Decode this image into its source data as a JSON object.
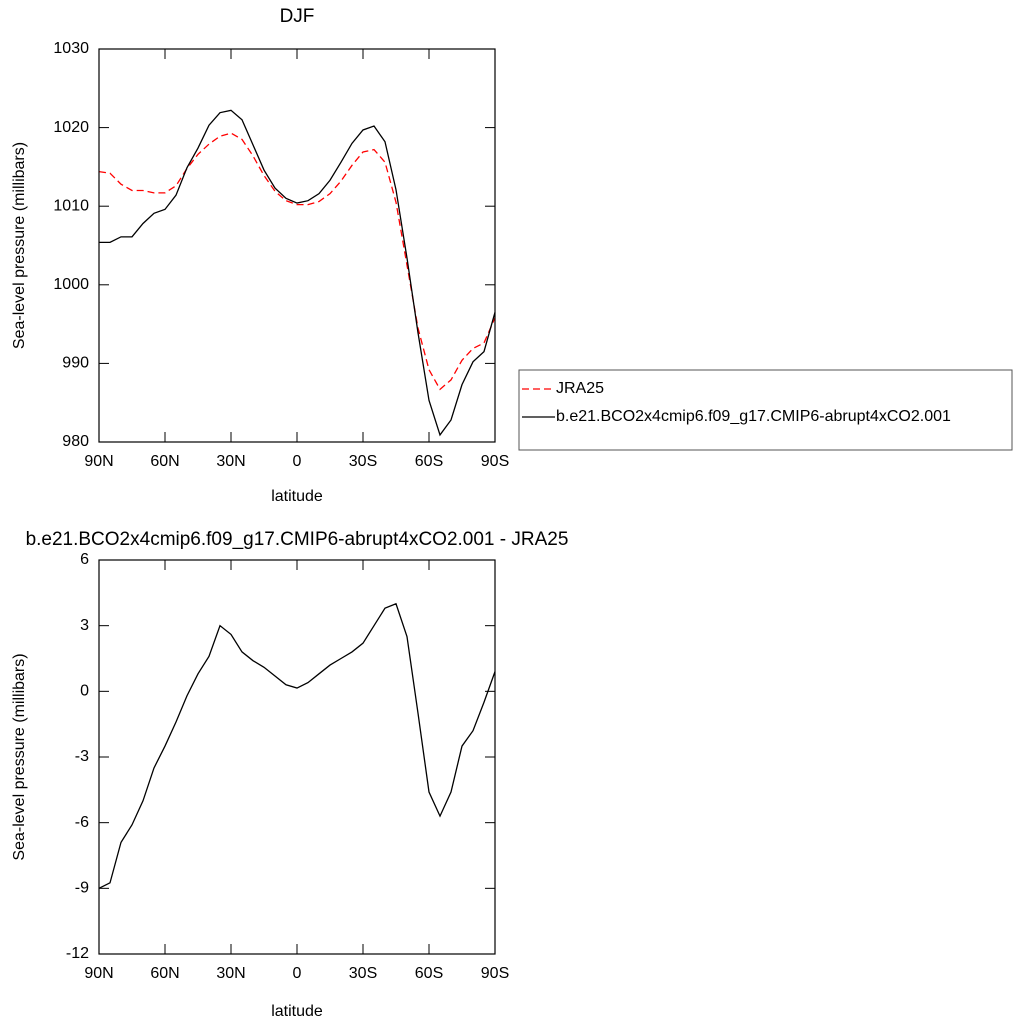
{
  "chart_data": [
    {
      "type": "line",
      "title": "DJF",
      "xlabel": "latitude",
      "ylabel": "Sea-level pressure (millibars)",
      "x": [
        90,
        85,
        80,
        75,
        70,
        65,
        60,
        55,
        50,
        45,
        40,
        35,
        30,
        25,
        20,
        15,
        10,
        5,
        0,
        -5,
        -10,
        -15,
        -20,
        -25,
        -30,
        -35,
        -40,
        -45,
        -50,
        -55,
        -60,
        -65,
        -70,
        -75,
        -80,
        -85,
        -90
      ],
      "series": [
        {
          "name": "JRA25",
          "color": "#ff0000",
          "dash": "dashed",
          "values": [
            1014.4,
            1014.2,
            1012.8,
            1012.0,
            1012.0,
            1011.7,
            1011.7,
            1012.6,
            1014.8,
            1016.6,
            1017.9,
            1018.9,
            1019.3,
            1018.5,
            1016.4,
            1013.9,
            1011.9,
            1010.7,
            1010.2,
            1010.2,
            1010.6,
            1011.6,
            1013.2,
            1015.2,
            1016.9,
            1017.2,
            1015.6,
            1010.5,
            1002.5,
            994.5,
            989.2,
            986.7,
            987.9,
            990.4,
            991.9,
            992.6,
            995.8
          ]
        },
        {
          "name": "b.e21.BCO2x4cmip6.f09_g17.CMIP6-abrupt4xCO2.001",
          "color": "#000000",
          "dash": "solid",
          "values": [
            1005.4,
            1005.4,
            1006.1,
            1006.1,
            1007.8,
            1009.1,
            1009.6,
            1011.4,
            1014.9,
            1017.4,
            1020.3,
            1021.9,
            1022.2,
            1021.0,
            1017.8,
            1014.6,
            1012.3,
            1011.0,
            1010.4,
            1010.7,
            1011.6,
            1013.3,
            1015.6,
            1018.0,
            1019.7,
            1020.2,
            1018.2,
            1012.1,
            1003.4,
            993.9,
            985.3,
            980.9,
            982.8,
            987.3,
            990.2,
            991.5,
            996.5
          ]
        }
      ],
      "xlim": [
        90,
        -90
      ],
      "xticks": [
        {
          "value": 90,
          "label": "90N"
        },
        {
          "value": 60,
          "label": "60N"
        },
        {
          "value": 30,
          "label": "30N"
        },
        0,
        {
          "value": -30,
          "label": "30S"
        },
        {
          "value": -60,
          "label": "60S"
        },
        {
          "value": -90,
          "label": "90S"
        }
      ],
      "ylim": [
        980,
        1030
      ],
      "yticks": [
        980,
        990,
        1000,
        1010,
        1020,
        1030
      ],
      "legend": "right"
    },
    {
      "type": "line",
      "title": "b.e21.BCO2x4cmip6.f09_g17.CMIP6-abrupt4xCO2.001 - JRA25",
      "xlabel": "latitude",
      "ylabel": "Sea-level pressure (millibars)",
      "x": [
        90,
        85,
        80,
        75,
        70,
        65,
        60,
        55,
        50,
        45,
        40,
        35,
        30,
        25,
        20,
        15,
        10,
        5,
        0,
        -5,
        -10,
        -15,
        -20,
        -25,
        -30,
        -35,
        -40,
        -45,
        -50,
        -55,
        -60,
        -65,
        -70,
        -75,
        -80,
        -85,
        -90
      ],
      "series": [
        {
          "color": "#000000",
          "dash": "solid",
          "values": [
            -9.0,
            -8.75,
            -6.9,
            -6.1,
            -5.0,
            -3.5,
            -2.5,
            -1.4,
            -0.2,
            0.8,
            1.6,
            3.0,
            2.6,
            1.8,
            1.4,
            1.1,
            0.7,
            0.3,
            0.15,
            0.4,
            0.8,
            1.2,
            1.5,
            1.8,
            2.2,
            3.0,
            3.8,
            4.0,
            2.5,
            -1.0,
            -4.6,
            -5.7,
            -4.6,
            -2.5,
            -1.8,
            -0.5,
            0.9
          ]
        }
      ],
      "xlim": [
        90,
        -90
      ],
      "xticks": [
        {
          "value": 90,
          "label": "90N"
        },
        {
          "value": 60,
          "label": "60N"
        },
        {
          "value": 30,
          "label": "30N"
        },
        0,
        {
          "value": -30,
          "label": "30S"
        },
        {
          "value": -60,
          "label": "60S"
        },
        {
          "value": -90,
          "label": "90S"
        }
      ],
      "ylim": [
        -12,
        6
      ],
      "yticks": [
        -12,
        -9,
        -6,
        -3,
        0,
        3,
        6
      ]
    }
  ]
}
